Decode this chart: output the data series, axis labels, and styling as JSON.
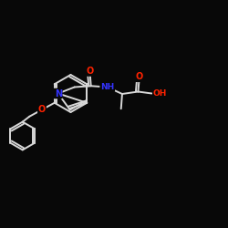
{
  "bg_color": "#080808",
  "bond_color": "#d8d8d8",
  "N_color": "#3333ff",
  "O_color": "#ff2200",
  "bond_width": 1.4,
  "figsize": [
    2.5,
    2.5
  ],
  "dpi": 100,
  "xlim": [
    0,
    10
  ],
  "ylim": [
    0,
    10
  ]
}
